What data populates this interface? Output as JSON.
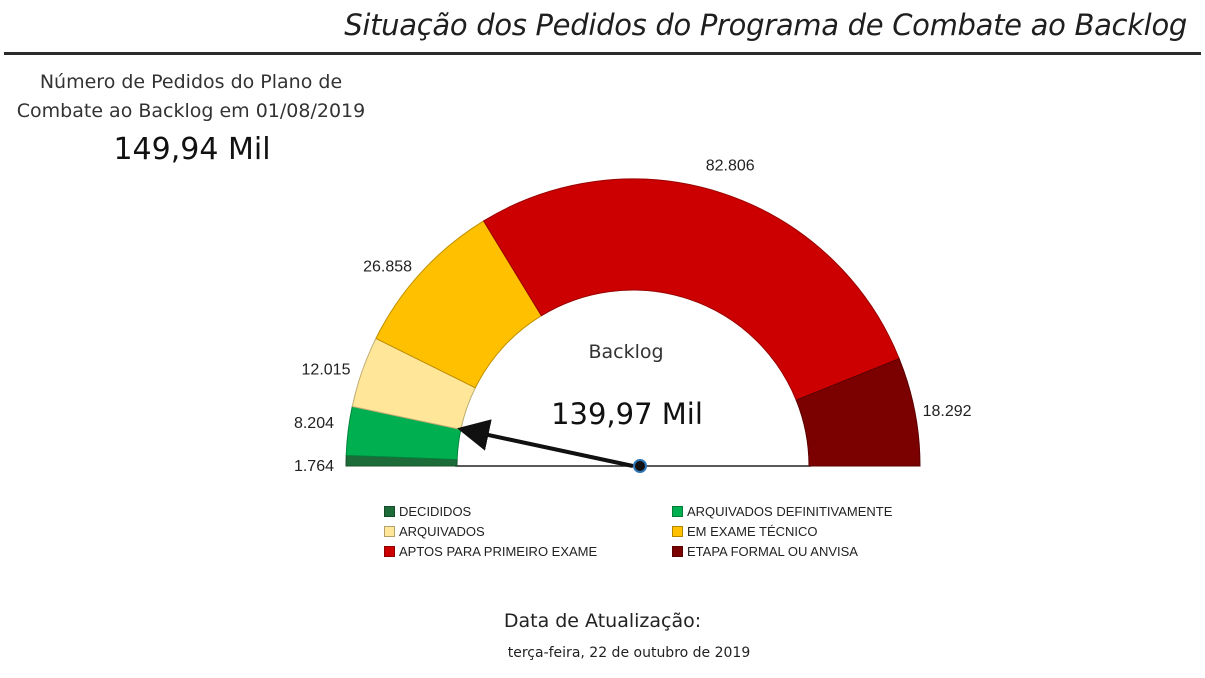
{
  "page": {
    "title": "Situação dos Pedidos do Programa de Combate ao Backlog"
  },
  "kpi": {
    "caption_line1": "Número de Pedidos do Plano de",
    "caption_line2": "Combate ao Backlog em 01/08/2019",
    "value": "149,94 Mil"
  },
  "chart_data": {
    "type": "gauge",
    "title": "",
    "center_label": "Backlog",
    "center_value": "139,97 Mil",
    "needle_value": 10000,
    "value_unit": "pedidos",
    "segments": [
      {
        "name": "DECIDIDOS",
        "value": 1764,
        "label": "1.764",
        "color": "#1e6b3a",
        "label_side": "left"
      },
      {
        "name": "ARQUIVADOS DEFINITIVAMENTE",
        "value": 8204,
        "label": "8.204",
        "color": "#00b050",
        "label_side": "left"
      },
      {
        "name": "ARQUIVADOS",
        "value": 12015,
        "label": "12.015",
        "color": "#ffe699",
        "label_side": "left"
      },
      {
        "name": "EM EXAME TÉCNICO",
        "value": 26858,
        "label": "26.858",
        "color": "#ffc000",
        "label_side": "left"
      },
      {
        "name": "APTOS PARA PRIMEIRO EXAME",
        "value": 82806,
        "label": "82.806",
        "color": "#cc0000",
        "label_side": "top"
      },
      {
        "name": "ETAPA FORMAL OU ANVISA",
        "value": 18292,
        "label": "18.292",
        "color": "#7b0000",
        "label_side": "right"
      }
    ],
    "legend": {
      "placement": "bottom",
      "columns": 2,
      "order": [
        "DECIDIDOS",
        "ARQUIVADOS DEFINITIVAMENTE",
        "ARQUIVADOS",
        "EM EXAME TÉCNICO",
        "APTOS PARA PRIMEIRO EXAME",
        "ETAPA FORMAL OU ANVISA"
      ]
    }
  },
  "footer": {
    "update_label": "Data de Atualização:",
    "update_date": "terça-feira, 22 de outubro de 2019"
  }
}
